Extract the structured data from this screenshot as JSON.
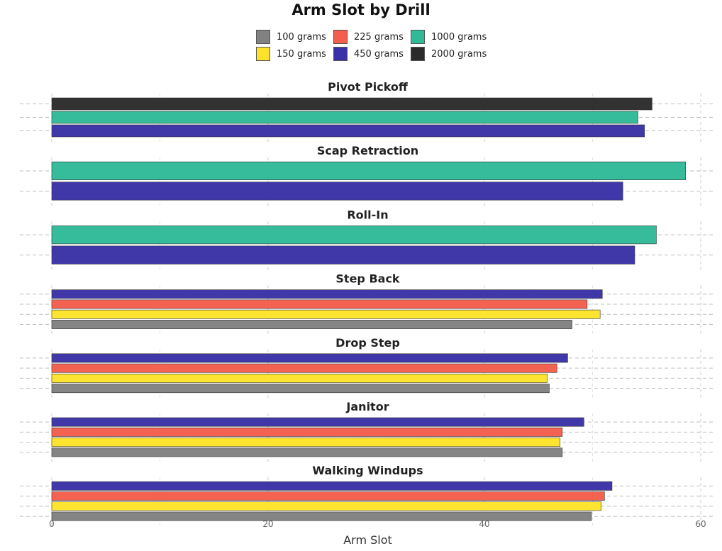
{
  "chart_data": {
    "type": "bar",
    "orientation": "horizontal",
    "layout": "faceted",
    "title": "Arm Slot by Drill",
    "xlabel": "Arm Slot",
    "ylabel": "",
    "xlim": [
      0,
      62
    ],
    "x_ticks": [
      0,
      20,
      40,
      60
    ],
    "grid": true,
    "legend_position": "top",
    "legend": [
      {
        "name": "100 grams",
        "color": "#818181"
      },
      {
        "name": "150 grams",
        "color": "#FCE32A"
      },
      {
        "name": "225 grams",
        "color": "#F45E4C"
      },
      {
        "name": "450 grams",
        "color": "#3A31A6"
      },
      {
        "name": "1000 grams",
        "color": "#2FBA98"
      },
      {
        "name": "2000 grams",
        "color": "#2B2B2B"
      }
    ],
    "panels": [
      {
        "title": "Pivot Pickoff",
        "bars": [
          {
            "series": "2000 grams",
            "value": 55.5
          },
          {
            "series": "1000 grams",
            "value": 54.2
          },
          {
            "series": "450 grams",
            "value": 54.8
          }
        ]
      },
      {
        "title": "Scap Retraction",
        "bars": [
          {
            "series": "1000 grams",
            "value": 58.6
          },
          {
            "series": "450 grams",
            "value": 52.8
          }
        ]
      },
      {
        "title": "Roll-In",
        "bars": [
          {
            "series": "1000 grams",
            "value": 55.9
          },
          {
            "series": "450 grams",
            "value": 53.9
          }
        ]
      },
      {
        "title": "Step Back",
        "bars": [
          {
            "series": "450 grams",
            "value": 50.9
          },
          {
            "series": "225 grams",
            "value": 49.5
          },
          {
            "series": "150 grams",
            "value": 50.7
          },
          {
            "series": "100 grams",
            "value": 48.1
          }
        ]
      },
      {
        "title": "Drop Step",
        "bars": [
          {
            "series": "450 grams",
            "value": 47.7
          },
          {
            "series": "225 grams",
            "value": 46.7
          },
          {
            "series": "150 grams",
            "value": 45.8
          },
          {
            "series": "100 grams",
            "value": 46.0
          }
        ]
      },
      {
        "title": "Janitor",
        "bars": [
          {
            "series": "450 grams",
            "value": 49.2
          },
          {
            "series": "225 grams",
            "value": 47.2
          },
          {
            "series": "150 grams",
            "value": 47.0
          },
          {
            "series": "100 grams",
            "value": 47.2
          }
        ]
      },
      {
        "title": "Walking Windups",
        "bars": [
          {
            "series": "450 grams",
            "value": 51.8
          },
          {
            "series": "225 grams",
            "value": 51.1
          },
          {
            "series": "150 grams",
            "value": 50.8
          },
          {
            "series": "100 grams",
            "value": 49.9
          }
        ]
      }
    ]
  }
}
